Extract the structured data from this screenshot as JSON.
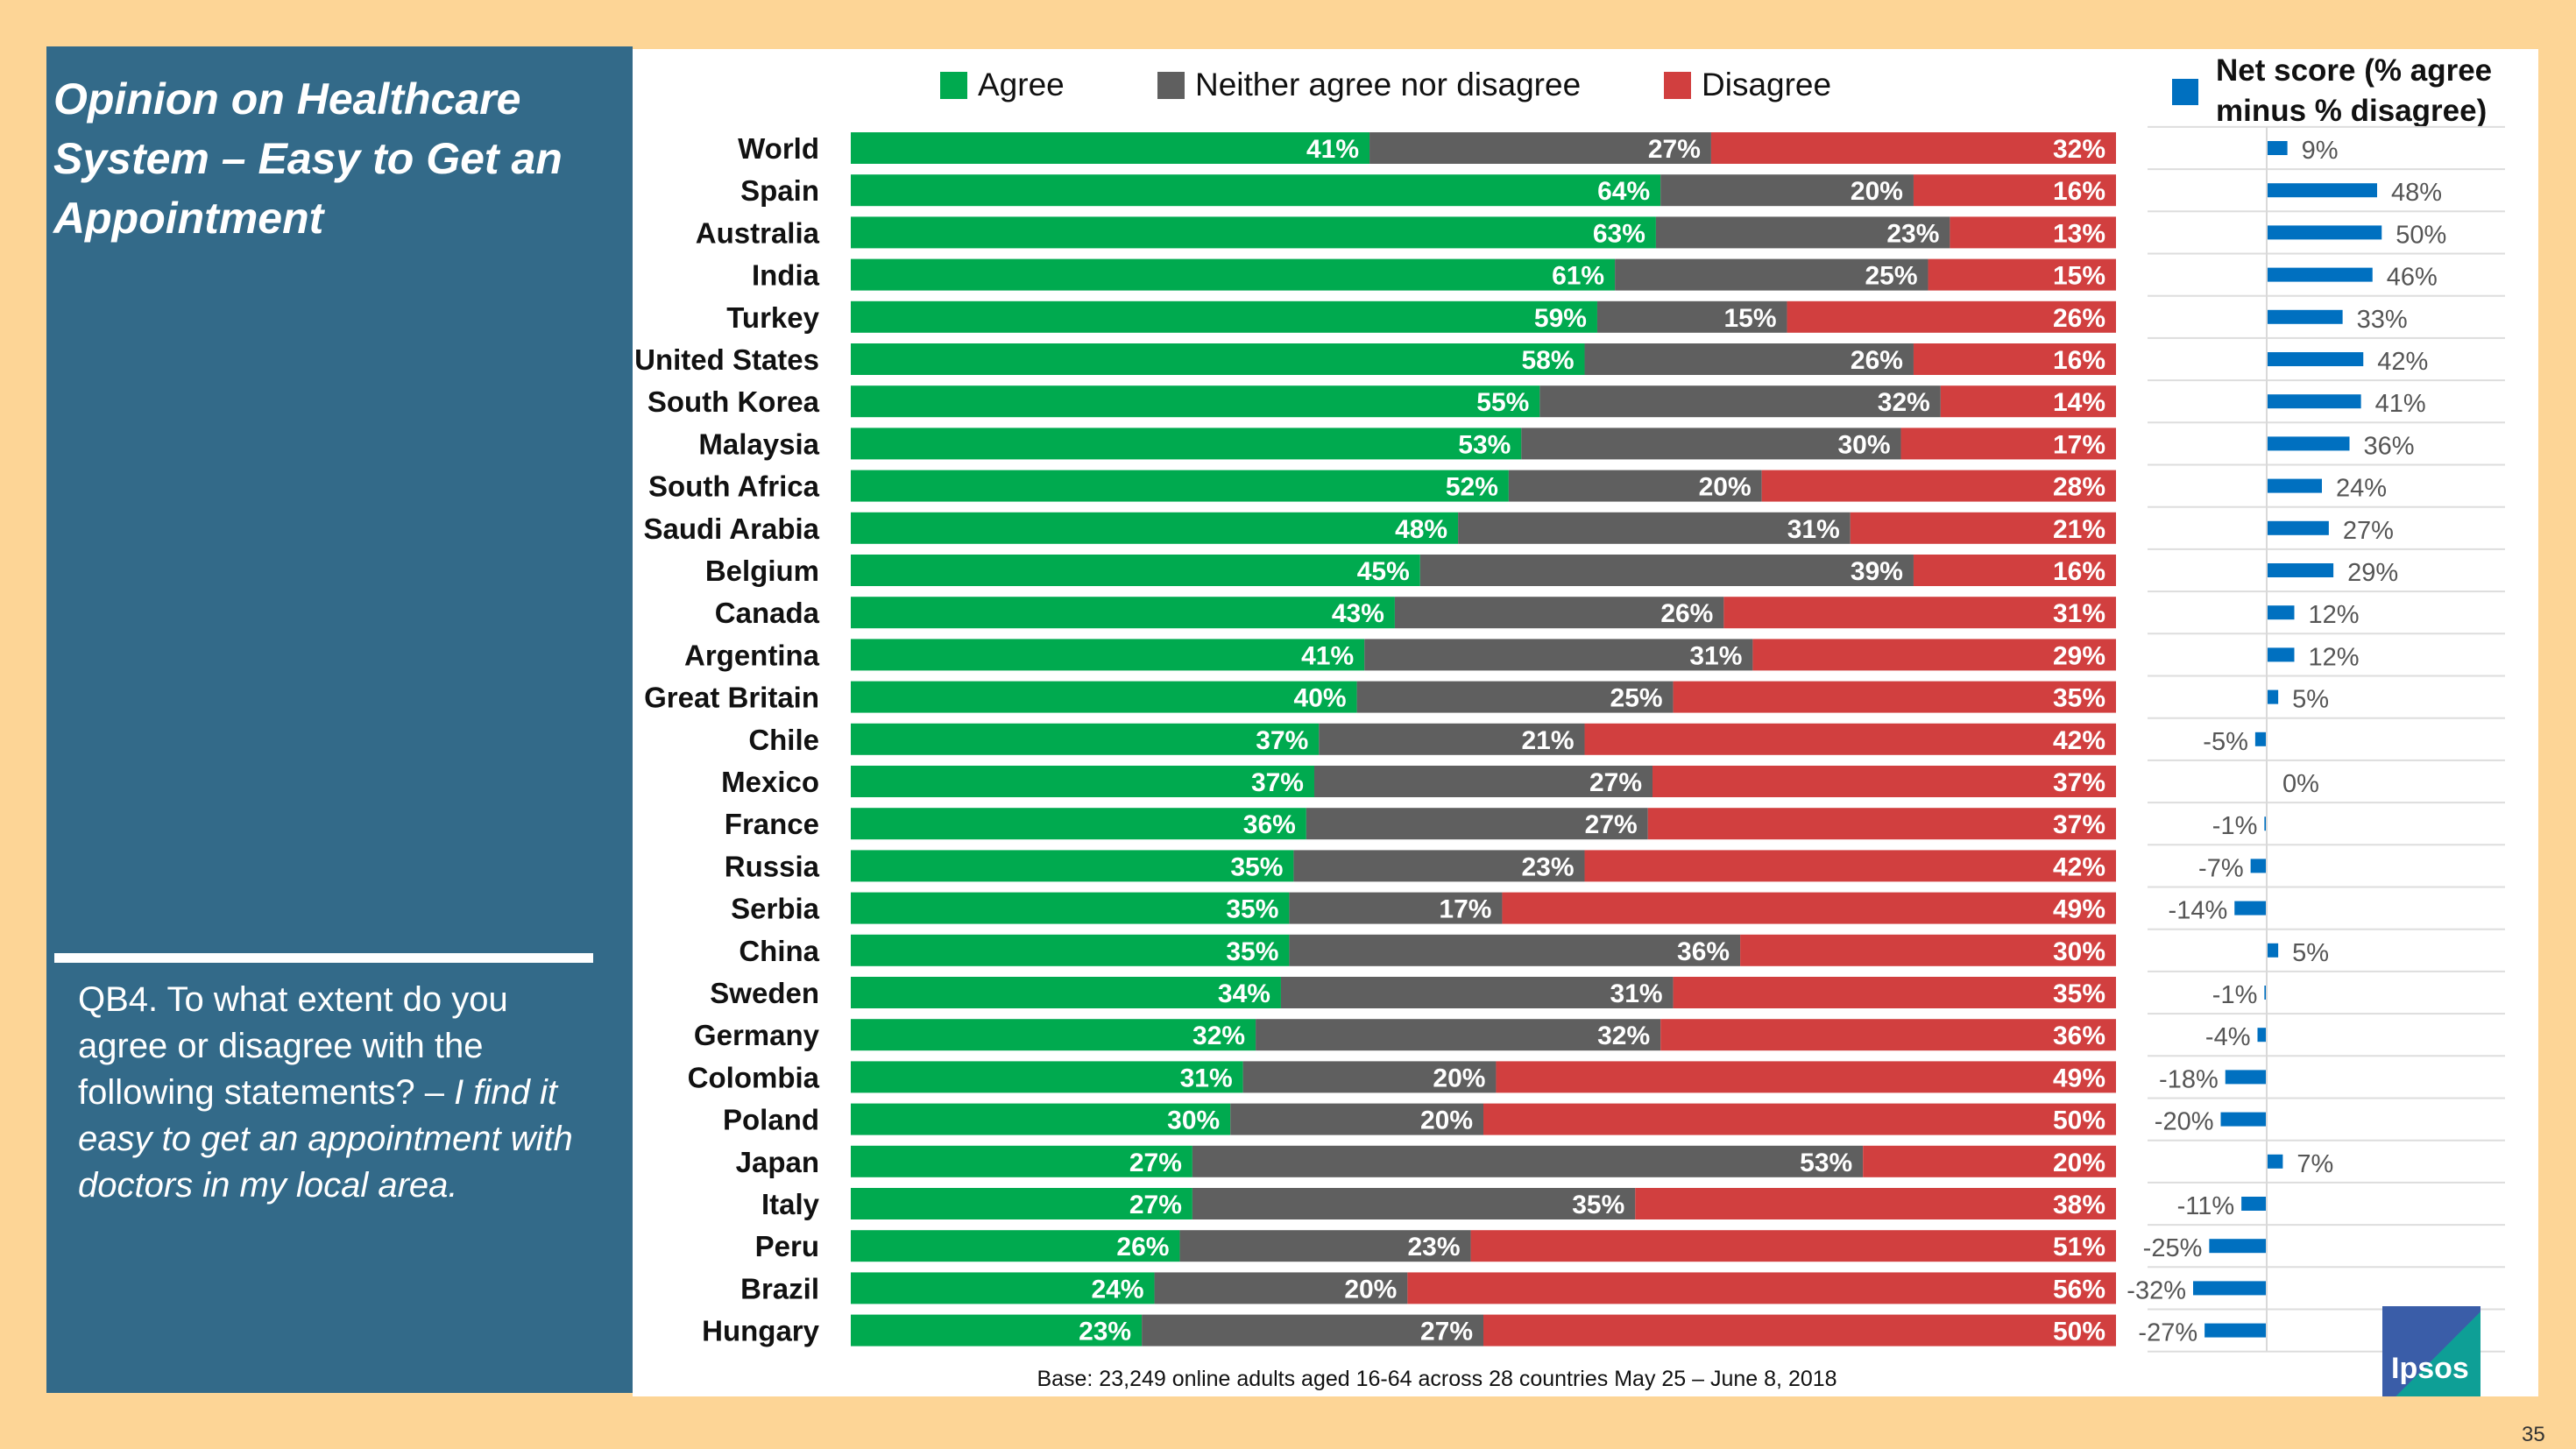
{
  "panel": {
    "title": "Opinion on Healthcare System – Easy to Get an Appointment",
    "question_prefix": "QB4. To what extent do you agree or disagree with the following statements? – ",
    "question_italic": "I find it easy to get an appointment with doctors in my local area."
  },
  "footer": {
    "base": "Base: 23,249 online adults aged 16-64 across 28 countries  May 25 – June 8, 2018",
    "logo": "Ipsos",
    "page_number": "35"
  },
  "colors": {
    "agree": "#00AA4F",
    "neither": "#5F5F5F",
    "disagree": "#D13F3F",
    "net": "#0070C0"
  },
  "chart_data": [
    {
      "type": "bar",
      "stacked": true,
      "orientation": "horizontal",
      "legend_position": "top",
      "categories": [
        "World",
        "Spain",
        "Australia",
        "India",
        "Turkey",
        "United States",
        "South Korea",
        "Malaysia",
        "South Africa",
        "Saudi Arabia",
        "Belgium",
        "Canada",
        "Argentina",
        "Great Britain",
        "Chile",
        "Mexico",
        "France",
        "Russia",
        "Serbia",
        "China",
        "Sweden",
        "Germany",
        "Colombia",
        "Poland",
        "Japan",
        "Italy",
        "Peru",
        "Brazil",
        "Hungary"
      ],
      "series": [
        {
          "name": "Agree",
          "values": [
            41,
            64,
            63,
            61,
            59,
            58,
            55,
            53,
            52,
            48,
            45,
            43,
            41,
            40,
            37,
            37,
            36,
            35,
            35,
            35,
            34,
            32,
            31,
            30,
            27,
            27,
            26,
            24,
            23
          ]
        },
        {
          "name": "Neither agree nor disagree",
          "values": [
            27,
            20,
            23,
            25,
            15,
            26,
            32,
            30,
            20,
            31,
            39,
            26,
            31,
            25,
            21,
            27,
            27,
            23,
            17,
            36,
            31,
            32,
            20,
            20,
            53,
            35,
            23,
            20,
            27
          ]
        },
        {
          "name": "Disagree",
          "values": [
            32,
            16,
            13,
            15,
            26,
            16,
            14,
            17,
            28,
            21,
            16,
            31,
            29,
            35,
            42,
            37,
            37,
            42,
            49,
            30,
            35,
            36,
            49,
            50,
            20,
            38,
            51,
            56,
            50
          ]
        }
      ],
      "unit": "%"
    },
    {
      "type": "bar",
      "orientation": "horizontal",
      "legend": "Net score (% agree minus % disagree)",
      "legend_lines": [
        "Net score (% agree",
        "minus % disagree)"
      ],
      "categories": [
        "World",
        "Spain",
        "Australia",
        "India",
        "Turkey",
        "United States",
        "South Korea",
        "Malaysia",
        "South Africa",
        "Saudi Arabia",
        "Belgium",
        "Canada",
        "Argentina",
        "Great Britain",
        "Chile",
        "Mexico",
        "France",
        "Russia",
        "Serbia",
        "China",
        "Sweden",
        "Germany",
        "Colombia",
        "Poland",
        "Japan",
        "Italy",
        "Peru",
        "Brazil",
        "Hungary"
      ],
      "values": [
        9,
        48,
        50,
        46,
        33,
        42,
        41,
        36,
        24,
        27,
        29,
        12,
        12,
        5,
        -5,
        0,
        -1,
        -7,
        -14,
        5,
        -1,
        -4,
        -18,
        -20,
        7,
        -11,
        -25,
        -32,
        -27
      ],
      "unit": "%"
    }
  ]
}
